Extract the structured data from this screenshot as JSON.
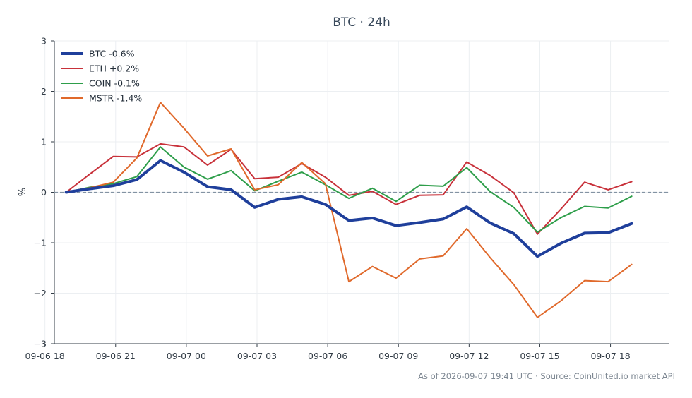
{
  "chart_data": {
    "type": "line",
    "title": "BTC · 24h",
    "ylabel": "%",
    "xlabel": "",
    "ylim": [
      -3,
      3
    ],
    "yticks": [
      3,
      2,
      1,
      0,
      -1,
      -2,
      -3
    ],
    "ytick_labels": [
      "3",
      "2",
      "1",
      "0",
      "−1",
      "−2",
      "−3"
    ],
    "xlim": [
      -0.5,
      25.6
    ],
    "xticks": [
      -0.9,
      2.1,
      5.1,
      8.1,
      11.1,
      14.1,
      17.1,
      20.1,
      23.1
    ],
    "xtick_labels": [
      "09-06 18",
      "09-06 21",
      "09-07 00",
      "09-07 03",
      "09-07 06",
      "09-07 09",
      "09-07 12",
      "09-07 15",
      "09-07 18"
    ],
    "x": [
      0,
      1,
      2,
      3,
      4,
      5,
      6,
      7,
      8,
      9,
      10,
      11,
      12,
      13,
      14,
      15,
      16,
      17,
      18,
      19,
      20,
      21,
      22,
      23,
      24
    ],
    "grid": true,
    "zero_line": true,
    "legend_position": "top-left",
    "series": [
      {
        "name": "BTC -0.6%",
        "color": "#1f3f9b",
        "width": 4,
        "values": [
          0,
          0.07,
          0.13,
          0.25,
          0.63,
          0.4,
          0.11,
          0.05,
          -0.3,
          -0.14,
          -0.09,
          -0.24,
          -0.56,
          -0.51,
          -0.66,
          -0.6,
          -0.53,
          -0.29,
          -0.61,
          -0.82,
          -1.27,
          -1.01,
          -0.81,
          -0.8,
          -0.62
        ]
      },
      {
        "name": "ETH +0.2%",
        "color": "#c8313a",
        "width": 2,
        "values": [
          0,
          0.36,
          0.71,
          0.7,
          0.96,
          0.9,
          0.54,
          0.85,
          0.27,
          0.3,
          0.57,
          0.3,
          -0.06,
          0.02,
          -0.24,
          -0.06,
          -0.05,
          0.6,
          0.33,
          -0.01,
          -0.83,
          -0.33,
          0.2,
          0.05,
          0.21
        ]
      },
      {
        "name": "COIN -0.1%",
        "color": "#2e9e4a",
        "width": 2,
        "values": [
          0,
          0.1,
          0.17,
          0.31,
          0.9,
          0.5,
          0.26,
          0.43,
          0.03,
          0.22,
          0.4,
          0.15,
          -0.12,
          0.08,
          -0.18,
          0.14,
          0.12,
          0.49,
          0.01,
          -0.3,
          -0.79,
          -0.5,
          -0.28,
          -0.31,
          -0.08
        ]
      },
      {
        "name": "MSTR -1.4%",
        "color": "#e0692b",
        "width": 2,
        "values": [
          0,
          0.09,
          0.2,
          0.68,
          1.78,
          1.27,
          0.72,
          0.86,
          0.05,
          0.15,
          0.59,
          0.17,
          -1.77,
          -1.47,
          -1.7,
          -1.32,
          -1.26,
          -0.72,
          -1.3,
          -1.83,
          -2.48,
          -2.15,
          -1.75,
          -1.77,
          -1.43
        ]
      }
    ]
  },
  "footer": {
    "text": "As of 2026-09-07 19:41 UTC · Source: CoinUnited.io market API"
  }
}
